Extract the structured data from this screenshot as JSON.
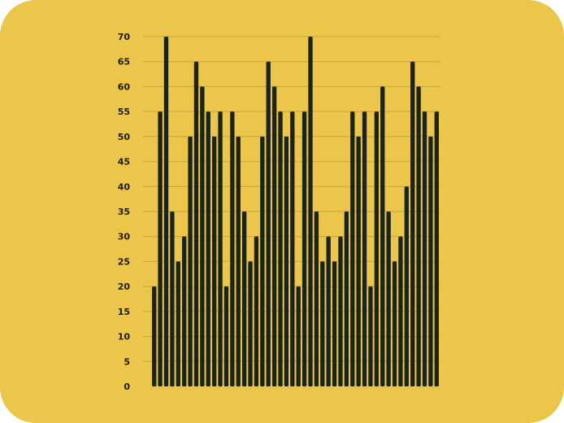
{
  "colors": {
    "background": "#ecc54b",
    "bar": "#1a241c",
    "grid": "#c9a53a"
  },
  "chart_data": {
    "type": "bar",
    "title": "",
    "xlabel": "",
    "ylabel": "",
    "ylim": [
      0,
      70
    ],
    "yticks": [
      "0",
      "5",
      "10",
      "15",
      "20",
      "25",
      "30",
      "35",
      "40",
      "45",
      "50",
      "55",
      "60",
      "65",
      "70"
    ],
    "grid": true,
    "values": [
      20,
      55,
      70,
      35,
      25,
      30,
      50,
      65,
      60,
      55,
      50,
      55,
      20,
      55,
      50,
      35,
      25,
      30,
      50,
      65,
      60,
      55,
      50,
      55,
      20,
      55,
      70,
      35,
      25,
      30,
      25,
      30,
      35,
      55,
      50,
      55,
      20,
      55,
      60,
      35,
      25,
      30,
      40,
      65,
      60,
      55,
      50,
      55
    ]
  }
}
